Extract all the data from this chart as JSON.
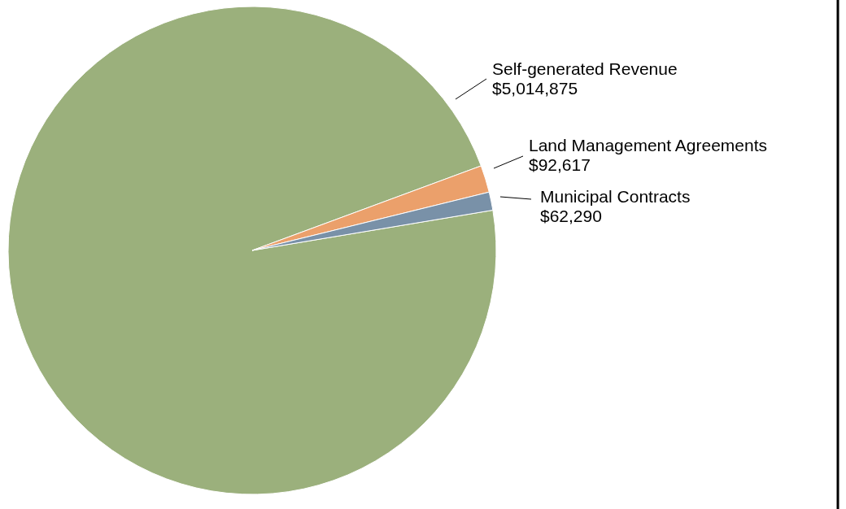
{
  "chart_data": {
    "type": "pie",
    "categories": [
      "Self-generated Revenue",
      "Land Management Agreements",
      "Municipal Contracts"
    ],
    "values": [
      5014875,
      92617,
      62290
    ],
    "colors": [
      "#9bb07c",
      "#eba06b",
      "#7991a8"
    ],
    "value_labels": [
      "$5,014,875",
      "$92,617",
      "$62,290"
    ]
  }
}
